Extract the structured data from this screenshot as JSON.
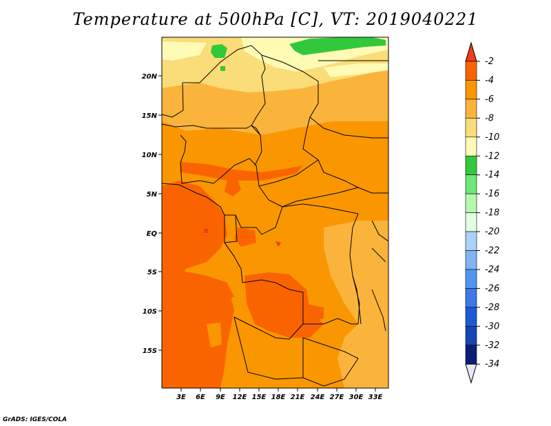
{
  "title": "Temperature at 500hPa [C], VT: 2019040221",
  "credit": "GrADS: IGES/COLA",
  "lat_labels": [
    "20N",
    "15N",
    "10N",
    "5N",
    "EQ",
    "5S",
    "10S",
    "15S"
  ],
  "lon_labels": [
    "3E",
    "6E",
    "9E",
    "12E",
    "15E",
    "18E",
    "21E",
    "24E",
    "27E",
    "30E",
    "33E"
  ],
  "colorbar": {
    "labels": [
      "-2",
      "-4",
      "-6",
      "-8",
      "-10",
      "-12",
      "-14",
      "-16",
      "-18",
      "-20",
      "-22",
      "-24",
      "-26",
      "-28",
      "-30",
      "-32",
      "-34"
    ],
    "colors": [
      "#f03c1e",
      "#fa6400",
      "#fa9600",
      "#fab43c",
      "#fadc78",
      "#fffab4",
      "#32c83c",
      "#6ee678",
      "#b4faaa",
      "#e1ffe1",
      "#aad2fa",
      "#82b4f0",
      "#5096f0",
      "#3c78e6",
      "#1e5ad2",
      "#1446b4",
      "#0a1e78",
      "#e6e6fa"
    ]
  },
  "field_colors": {
    "c2": "#f03c1e",
    "c4": "#fa6400",
    "c6": "#fa9600",
    "c8": "#fab43c",
    "c10": "#fadc78",
    "c12": "#fffab4",
    "c14": "#32c83c"
  }
}
